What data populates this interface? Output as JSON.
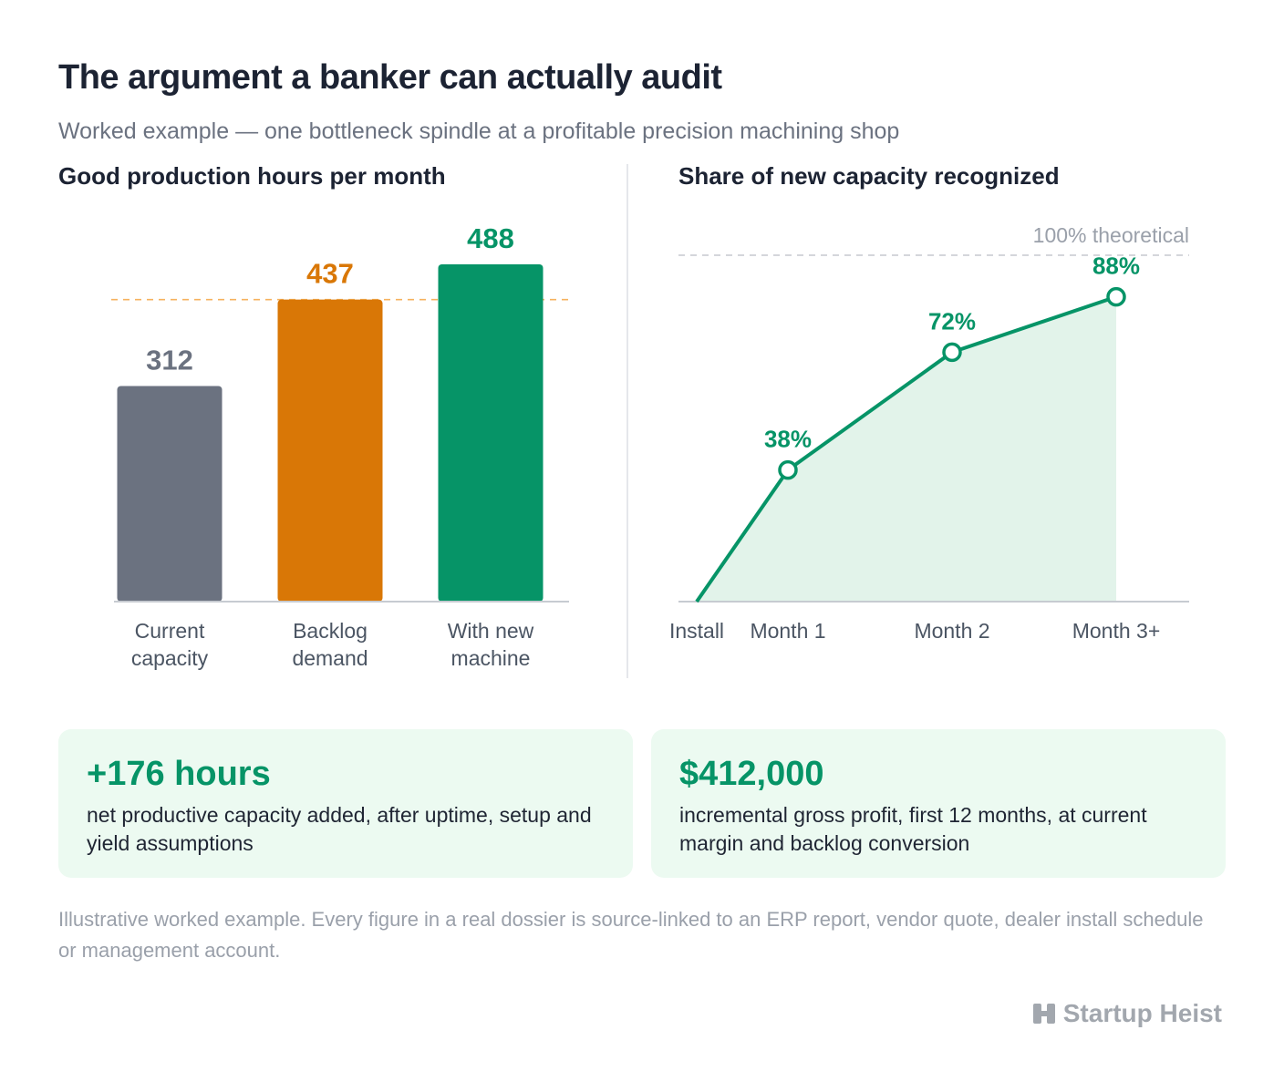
{
  "header": {
    "title": "The argument a banker can actually audit",
    "subtitle": "Worked example — one bottleneck spindle at a profitable precision machining shop"
  },
  "chart_data": [
    {
      "type": "bar",
      "title": "Good production hours per month",
      "categories": [
        "Current capacity",
        "Backlog demand",
        "With new machine"
      ],
      "category_lines": [
        [
          "Current",
          "capacity"
        ],
        [
          "Backlog",
          "demand"
        ],
        [
          "With new",
          "machine"
        ]
      ],
      "values": [
        312,
        437,
        488
      ],
      "value_labels": [
        "312",
        "437",
        "488"
      ],
      "colors": [
        "#6b7280",
        "#d97706",
        "#069467"
      ],
      "reference_line": {
        "value": 437,
        "color": "#f6b25e",
        "style": "dashed"
      },
      "ylim": [
        0,
        488
      ],
      "grid": false
    },
    {
      "type": "area",
      "title": "Share of new capacity recognized",
      "x": [
        "Install",
        "Month 1",
        "Month 2",
        "Month 3+"
      ],
      "values": [
        0,
        38,
        72,
        88
      ],
      "point_labels": [
        "",
        "38%",
        "72%",
        "88%"
      ],
      "reference_line": {
        "value": 100,
        "label": "100% theoretical",
        "style": "dashed"
      },
      "color": "#069467",
      "fill": "#e2f3ea",
      "ylim": [
        0,
        100
      ],
      "grid": false
    }
  ],
  "cards": [
    {
      "value": "+176 hours",
      "text": "net productive capacity added, after uptime, setup and yield assumptions"
    },
    {
      "value": "$412,000",
      "text": "incremental gross profit, first 12 months, at current margin and backlog conversion"
    }
  ],
  "footnote": "Illustrative worked example. Every figure in a real dossier is source-linked to an ERP report, vendor quote, dealer install schedule or management account.",
  "brand": {
    "name": "Startup Heist",
    "icon": "building-icon"
  }
}
